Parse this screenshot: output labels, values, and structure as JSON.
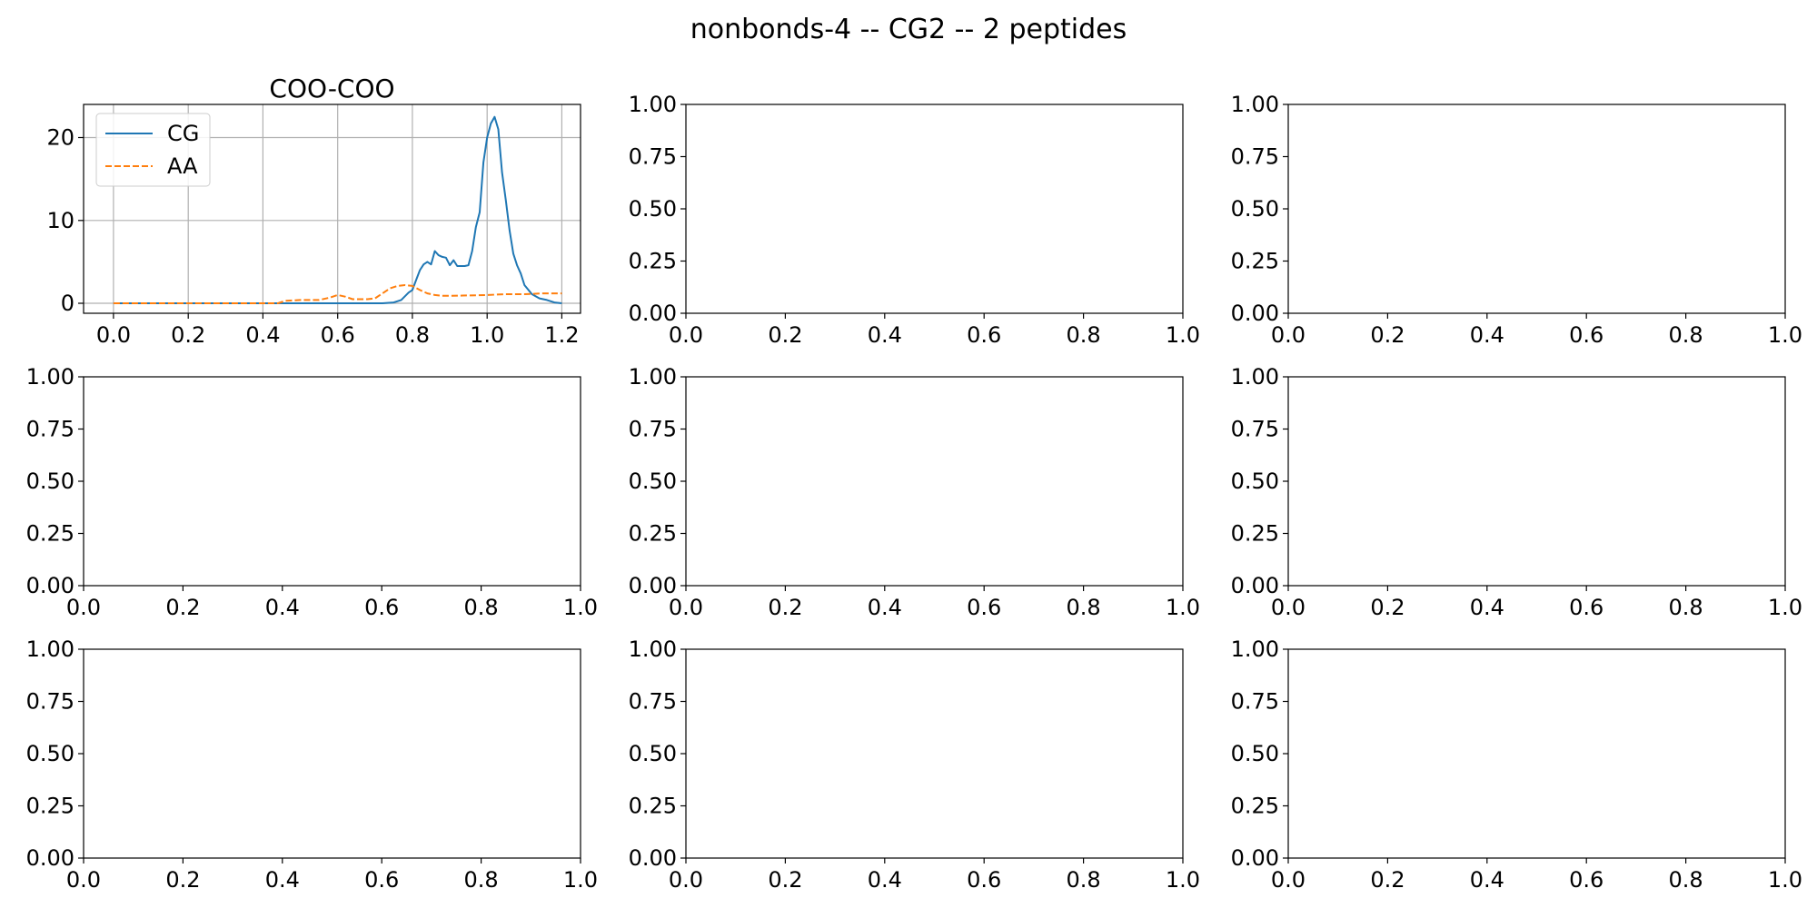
{
  "figure": {
    "title": "nonbonds-4 -- CG2 -- 2 peptides",
    "background": "#ffffff"
  },
  "chart_data": [
    {
      "type": "line",
      "title": "COO-COO",
      "xlabel": "",
      "ylabel": "",
      "xlim": [
        -0.08,
        1.25
      ],
      "ylim": [
        -1.2,
        24
      ],
      "xticks": [
        0.0,
        0.2,
        0.4,
        0.6,
        0.8,
        1.0,
        1.2
      ],
      "xtick_labels": [
        "0.0",
        "0.2",
        "0.4",
        "0.6",
        "0.8",
        "1.0",
        "1.2"
      ],
      "yticks": [
        0,
        10,
        20
      ],
      "ytick_labels": [
        "0",
        "10",
        "20"
      ],
      "grid": true,
      "legend": {
        "position": "upper-left",
        "entries": [
          "CG",
          "AA"
        ]
      },
      "series": [
        {
          "name": "CG",
          "color": "#1f77b4",
          "dash": "solid",
          "x": [
            0.0,
            0.55,
            0.72,
            0.75,
            0.77,
            0.79,
            0.8,
            0.81,
            0.82,
            0.83,
            0.84,
            0.85,
            0.86,
            0.87,
            0.88,
            0.89,
            0.9,
            0.91,
            0.92,
            0.93,
            0.94,
            0.95,
            0.96,
            0.97,
            0.98,
            0.99,
            1.0,
            1.01,
            1.02,
            1.03,
            1.04,
            1.05,
            1.06,
            1.07,
            1.08,
            1.09,
            1.1,
            1.12,
            1.14,
            1.16,
            1.18,
            1.2
          ],
          "y": [
            0.0,
            0.0,
            0.0,
            0.1,
            0.4,
            1.3,
            1.6,
            2.8,
            4.0,
            4.7,
            5.0,
            4.7,
            6.3,
            5.8,
            5.6,
            5.5,
            4.6,
            5.2,
            4.5,
            4.5,
            4.5,
            4.6,
            6.3,
            9.2,
            11.0,
            17.0,
            20.0,
            21.7,
            22.5,
            21.0,
            15.8,
            12.5,
            8.8,
            6.0,
            4.6,
            3.6,
            2.2,
            1.1,
            0.6,
            0.4,
            0.1,
            0.0
          ]
        },
        {
          "name": "AA",
          "color": "#ff7f0e",
          "dash": "dashed",
          "x": [
            0.0,
            0.44,
            0.46,
            0.5,
            0.55,
            0.58,
            0.6,
            0.62,
            0.64,
            0.66,
            0.68,
            0.7,
            0.72,
            0.74,
            0.76,
            0.78,
            0.8,
            0.82,
            0.84,
            0.86,
            0.88,
            0.9,
            0.95,
            1.0,
            1.05,
            1.1,
            1.15,
            1.2
          ],
          "y": [
            0.0,
            0.0,
            0.3,
            0.4,
            0.4,
            0.7,
            1.0,
            0.8,
            0.5,
            0.5,
            0.5,
            0.6,
            1.2,
            1.8,
            2.1,
            2.2,
            2.1,
            1.6,
            1.2,
            1.0,
            0.9,
            0.9,
            0.95,
            1.0,
            1.1,
            1.1,
            1.2,
            1.2
          ]
        }
      ]
    },
    {
      "type": "line",
      "title": "",
      "xlim": [
        0,
        1
      ],
      "ylim": [
        0,
        1
      ],
      "xticks": [
        0.0,
        0.2,
        0.4,
        0.6,
        0.8,
        1.0
      ],
      "xtick_labels": [
        "0.0",
        "0.2",
        "0.4",
        "0.6",
        "0.8",
        "1.0"
      ],
      "yticks": [
        0.0,
        0.25,
        0.5,
        0.75,
        1.0
      ],
      "ytick_labels": [
        "0.00",
        "0.25",
        "0.50",
        "0.75",
        "1.00"
      ],
      "grid": false,
      "series": []
    },
    {
      "type": "line",
      "title": "",
      "xlim": [
        0,
        1
      ],
      "ylim": [
        0,
        1
      ],
      "xticks": [
        0.0,
        0.2,
        0.4,
        0.6,
        0.8,
        1.0
      ],
      "xtick_labels": [
        "0.0",
        "0.2",
        "0.4",
        "0.6",
        "0.8",
        "1.0"
      ],
      "yticks": [
        0.0,
        0.25,
        0.5,
        0.75,
        1.0
      ],
      "ytick_labels": [
        "0.00",
        "0.25",
        "0.50",
        "0.75",
        "1.00"
      ],
      "grid": false,
      "series": []
    },
    {
      "type": "line",
      "title": "",
      "xlim": [
        0,
        1
      ],
      "ylim": [
        0,
        1
      ],
      "xticks": [
        0.0,
        0.2,
        0.4,
        0.6,
        0.8,
        1.0
      ],
      "xtick_labels": [
        "0.0",
        "0.2",
        "0.4",
        "0.6",
        "0.8",
        "1.0"
      ],
      "yticks": [
        0.0,
        0.25,
        0.5,
        0.75,
        1.0
      ],
      "ytick_labels": [
        "0.00",
        "0.25",
        "0.50",
        "0.75",
        "1.00"
      ],
      "grid": false,
      "series": []
    },
    {
      "type": "line",
      "title": "",
      "xlim": [
        0,
        1
      ],
      "ylim": [
        0,
        1
      ],
      "xticks": [
        0.0,
        0.2,
        0.4,
        0.6,
        0.8,
        1.0
      ],
      "xtick_labels": [
        "0.0",
        "0.2",
        "0.4",
        "0.6",
        "0.8",
        "1.0"
      ],
      "yticks": [
        0.0,
        0.25,
        0.5,
        0.75,
        1.0
      ],
      "ytick_labels": [
        "0.00",
        "0.25",
        "0.50",
        "0.75",
        "1.00"
      ],
      "grid": false,
      "series": []
    },
    {
      "type": "line",
      "title": "",
      "xlim": [
        0,
        1
      ],
      "ylim": [
        0,
        1
      ],
      "xticks": [
        0.0,
        0.2,
        0.4,
        0.6,
        0.8,
        1.0
      ],
      "xtick_labels": [
        "0.0",
        "0.2",
        "0.4",
        "0.6",
        "0.8",
        "1.0"
      ],
      "yticks": [
        0.0,
        0.25,
        0.5,
        0.75,
        1.0
      ],
      "ytick_labels": [
        "0.00",
        "0.25",
        "0.50",
        "0.75",
        "1.00"
      ],
      "grid": false,
      "series": []
    },
    {
      "type": "line",
      "title": "",
      "xlim": [
        0,
        1
      ],
      "ylim": [
        0,
        1
      ],
      "xticks": [
        0.0,
        0.2,
        0.4,
        0.6,
        0.8,
        1.0
      ],
      "xtick_labels": [
        "0.0",
        "0.2",
        "0.4",
        "0.6",
        "0.8",
        "1.0"
      ],
      "yticks": [
        0.0,
        0.25,
        0.5,
        0.75,
        1.0
      ],
      "ytick_labels": [
        "0.00",
        "0.25",
        "0.50",
        "0.75",
        "1.00"
      ],
      "grid": false,
      "series": []
    },
    {
      "type": "line",
      "title": "",
      "xlim": [
        0,
        1
      ],
      "ylim": [
        0,
        1
      ],
      "xticks": [
        0.0,
        0.2,
        0.4,
        0.6,
        0.8,
        1.0
      ],
      "xtick_labels": [
        "0.0",
        "0.2",
        "0.4",
        "0.6",
        "0.8",
        "1.0"
      ],
      "yticks": [
        0.0,
        0.25,
        0.5,
        0.75,
        1.0
      ],
      "ytick_labels": [
        "0.00",
        "0.25",
        "0.50",
        "0.75",
        "1.00"
      ],
      "grid": false,
      "series": []
    },
    {
      "type": "line",
      "title": "",
      "xlim": [
        0,
        1
      ],
      "ylim": [
        0,
        1
      ],
      "xticks": [
        0.0,
        0.2,
        0.4,
        0.6,
        0.8,
        1.0
      ],
      "xtick_labels": [
        "0.0",
        "0.2",
        "0.4",
        "0.6",
        "0.8",
        "1.0"
      ],
      "yticks": [
        0.0,
        0.25,
        0.5,
        0.75,
        1.0
      ],
      "ytick_labels": [
        "0.00",
        "0.25",
        "0.50",
        "0.75",
        "1.00"
      ],
      "grid": false,
      "series": []
    }
  ]
}
